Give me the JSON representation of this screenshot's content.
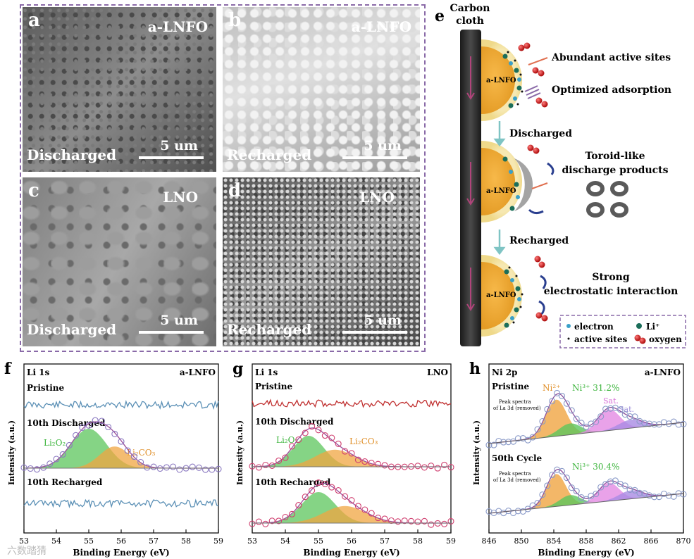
{
  "sem_panels": [
    {
      "letter": "a",
      "sample": "a-LNFO",
      "condition": "Discharged",
      "scale": "5 um"
    },
    {
      "letter": "b",
      "sample": "a-LNFO",
      "condition": "Recharged",
      "scale": "5 um"
    },
    {
      "letter": "c",
      "sample": "LNO",
      "condition": "Discharged",
      "scale": "5 um"
    },
    {
      "letter": "d",
      "sample": "LNO",
      "condition": "Recharged",
      "scale": "5 um"
    }
  ],
  "schematic": {
    "letter": "e",
    "carbon_cloth": "Carbon\ncloth",
    "carbon_cloth_1": "Carbon",
    "carbon_cloth_2": "cloth",
    "particle_label": "a-LNFO",
    "abundant": "Abundant active sites",
    "optimized": "Optimized adsorption",
    "discharged": "Discharged",
    "toroid_1": "Toroid-like",
    "toroid_2": "discharge products",
    "recharged": "Recharged",
    "strong_1": "Strong",
    "strong_2": "electrostatic interaction",
    "legend_electron": "electron",
    "legend_li": "Li⁺",
    "legend_active": "active sites",
    "legend_oxygen": "oxygen"
  },
  "chart_data": [
    {
      "type": "line",
      "panel": "f",
      "title": "Li 1s",
      "sample": "a-LNFO",
      "xlabel": "Binding Energy (eV)",
      "ylabel": "Intensity (a.u.)",
      "xlim": [
        53,
        59
      ],
      "x_ticks": [
        "53",
        "54",
        "55",
        "56",
        "57",
        "58",
        "59"
      ],
      "series": [
        {
          "name": "Pristine",
          "kind": "noise"
        },
        {
          "name": "10th Discharged",
          "kind": "peaks",
          "components": [
            {
              "name": "Li2O2",
              "center": 55.0,
              "fwhm": 1.3,
              "color": "#5cc65c"
            },
            {
              "name": "Li2CO3",
              "center": 55.8,
              "fwhm": 1.1,
              "color": "#f0a542"
            }
          ]
        },
        {
          "name": "10th Recharged",
          "kind": "noise"
        }
      ],
      "peak_labels": {
        "li2o2": "Li₂O₂",
        "li2co3": "Li₂CO₃"
      }
    },
    {
      "type": "line",
      "panel": "g",
      "title": "Li 1s",
      "sample": "LNO",
      "xlabel": "Binding Energy (eV)",
      "ylabel": "Intensity (a.u.)",
      "xlim": [
        53,
        59
      ],
      "x_ticks": [
        "53",
        "54",
        "55",
        "56",
        "57",
        "58",
        "59"
      ],
      "series": [
        {
          "name": "Pristine",
          "kind": "noise"
        },
        {
          "name": "10th Discharged",
          "kind": "peaks",
          "components": [
            {
              "name": "Li2O2",
              "center": 54.7,
              "fwhm": 1.1,
              "color": "#5cc65c"
            },
            {
              "name": "Li2CO3",
              "center": 55.5,
              "fwhm": 1.4,
              "color": "#f0a542"
            }
          ]
        },
        {
          "name": "10th Recharged",
          "kind": "peaks",
          "components": [
            {
              "name": "Li2O2",
              "center": 55.0,
              "fwhm": 1.2,
              "color": "#5cc65c"
            },
            {
              "name": "Li2CO3",
              "center": 55.8,
              "fwhm": 1.5,
              "color": "#f0a542"
            }
          ]
        }
      ],
      "peak_labels": {
        "li2o2": "Li₂O₂",
        "li2co3": "Li₂CO₃"
      }
    },
    {
      "type": "line",
      "panel": "h",
      "title": "Ni 2p",
      "sample": "a-LNFO",
      "xlabel": "Binding Energy (eV)",
      "ylabel": "Intensity (a.u.)",
      "xlim": [
        846,
        870
      ],
      "x_ticks": [
        "846",
        "850",
        "854",
        "858",
        "862",
        "866",
        "870"
      ],
      "series": [
        {
          "name": "Pristine",
          "ni3": "Ni³⁺ 31.2%",
          "components": [
            {
              "name": "Ni2+",
              "center": 854.3,
              "fwhm": 3.0,
              "color": "#f0a542"
            },
            {
              "name": "Ni3+",
              "center": 856.0,
              "fwhm": 3.2,
              "color": "#5cc65c"
            },
            {
              "name": "Sat.",
              "center": 860.8,
              "fwhm": 3.2,
              "color": "#e48be4"
            },
            {
              "name": "Sat.2",
              "center": 863.5,
              "fwhm": 3.5,
              "color": "#a98be4"
            }
          ]
        },
        {
          "name": "50th Cycle",
          "ni3": "Ni³⁺ 30.4%",
          "components": [
            {
              "name": "Ni2+",
              "center": 854.3,
              "fwhm": 2.8,
              "color": "#f0a542"
            },
            {
              "name": "Ni3+",
              "center": 856.0,
              "fwhm": 3.0,
              "color": "#5cc65c"
            },
            {
              "name": "Sat.",
              "center": 860.8,
              "fwhm": 3.0,
              "color": "#e48be4"
            },
            {
              "name": "Sat.2",
              "center": 863.5,
              "fwhm": 3.4,
              "color": "#a98be4"
            }
          ]
        }
      ],
      "labels": {
        "ni2": "Ni²⁺",
        "sat": "Sat.",
        "sat2": "Sat.",
        "la3d_1": "Peak spectra",
        "la3d_2": "of La 3d (removed)"
      }
    }
  ],
  "watermark": "六数踏猜"
}
